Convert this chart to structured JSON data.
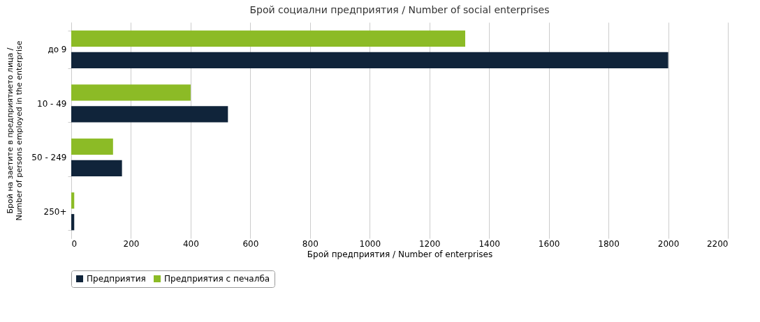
{
  "chart_data": {
    "type": "bar",
    "orientation": "horizontal",
    "title": "Брой социални предприятия / Number of social enterprises",
    "xlabel": "Брой предприятия / Number of enterprises",
    "ylabel": "Брой на заетите в предприятието лица / Number of persons employed in the enterprise",
    "categories": [
      "до 9",
      "10 - 49",
      "50 - 249",
      "250+"
    ],
    "series": [
      {
        "name": "Предприятия",
        "color": "#10243a",
        "values": [
          2000,
          525,
          170,
          10
        ]
      },
      {
        "name": "Предприятия с печалба",
        "color": "#8cbb26",
        "values": [
          1320,
          400,
          140,
          10
        ]
      }
    ],
    "xlim": [
      0,
      2200
    ],
    "xticks": [
      0,
      200,
      400,
      600,
      800,
      1000,
      1200,
      1400,
      1600,
      1800,
      2000,
      2200
    ],
    "grid": "x",
    "legend": "bottom"
  }
}
